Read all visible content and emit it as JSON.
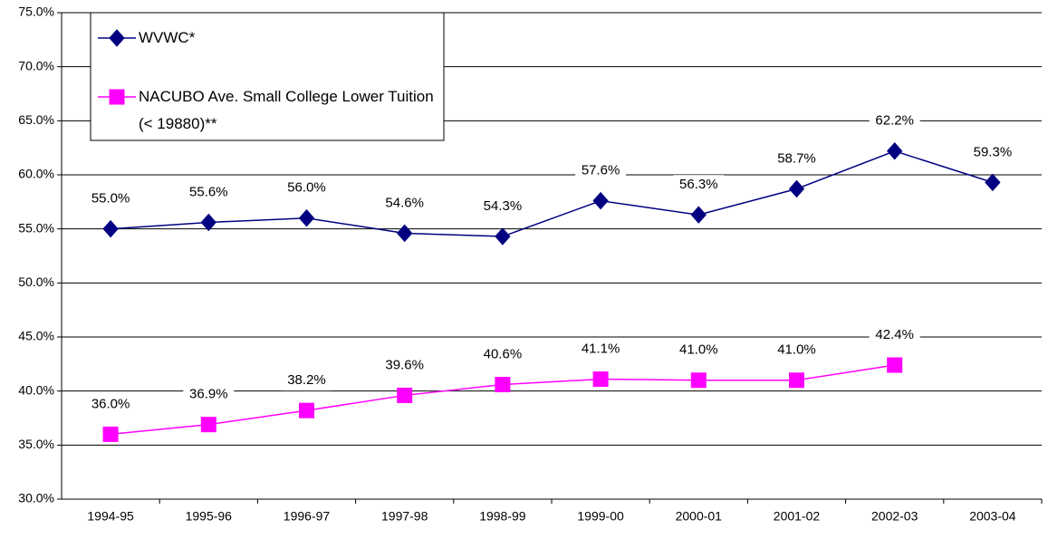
{
  "chart_data": {
    "type": "line",
    "categories": [
      "1994-95",
      "1995-96",
      "1996-97",
      "1997-98",
      "1998-99",
      "1999-00",
      "2000-01",
      "2001-02",
      "2002-03",
      "2003-04"
    ],
    "series": [
      {
        "name": "WVWC*",
        "color": "#000080",
        "marker": "diamond",
        "values": [
          55.0,
          55.6,
          56.0,
          54.6,
          54.3,
          57.6,
          56.3,
          58.7,
          62.2,
          59.3
        ],
        "value_labels": [
          "55.0%",
          "55.6%",
          "56.0%",
          "54.6%",
          "54.3%",
          "57.6%",
          "56.3%",
          "58.7%",
          "62.2%",
          "59.3%"
        ]
      },
      {
        "name": "NACUBO Ave. Small College Lower Tuition (< 19880)**",
        "color": "#ff00ff",
        "marker": "square",
        "values": [
          36.0,
          36.9,
          38.2,
          39.6,
          40.6,
          41.1,
          41.0,
          41.0,
          42.4,
          null
        ],
        "value_labels": [
          "36.0%",
          "36.9%",
          "38.2%",
          "39.6%",
          "40.6%",
          "41.1%",
          "41.0%",
          "41.0%",
          "42.4%",
          null
        ]
      }
    ],
    "ylim": [
      30,
      75
    ],
    "yticks": [
      {
        "value": 30,
        "label": "30.0%"
      },
      {
        "value": 35,
        "label": "35.0%"
      },
      {
        "value": 40,
        "label": "40.0%"
      },
      {
        "value": 45,
        "label": "45.0%"
      },
      {
        "value": 50,
        "label": "50.0%"
      },
      {
        "value": 55,
        "label": "55.0%"
      },
      {
        "value": 60,
        "label": "60.0%"
      },
      {
        "value": 65,
        "label": "65.0%"
      },
      {
        "value": 70,
        "label": "70.0%"
      },
      {
        "value": 75,
        "label": "75.0%"
      }
    ],
    "grid": true,
    "legend": "upper left"
  }
}
